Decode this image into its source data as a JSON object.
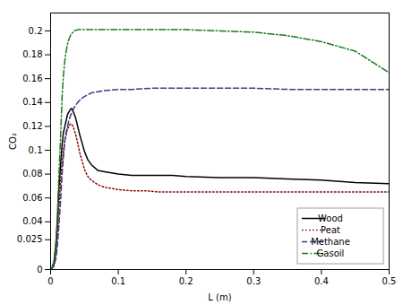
{
  "chart_data": {
    "type": "line",
    "xlabel": "L (m)",
    "ylabel": "CO₂",
    "xlim": [
      0,
      0.5
    ],
    "ylim": [
      0,
      0.215
    ],
    "xticks": [
      0,
      0.1,
      0.2,
      0.3,
      0.4,
      0.5
    ],
    "yticks": [
      0,
      0.025,
      0.04,
      0.06,
      0.08,
      0.1,
      0.12,
      0.14,
      0.16,
      0.18,
      0.2
    ],
    "grid": false,
    "legend": "lower right",
    "series": [
      {
        "name": "Wood",
        "color": "black",
        "line_style": "solid",
        "x": [
          0,
          0.002,
          0.005,
          0.008,
          0.01,
          0.012,
          0.015,
          0.017,
          0.019,
          0.021,
          0.023,
          0.025,
          0.027,
          0.029,
          0.031,
          0.033,
          0.035,
          0.037,
          0.04,
          0.043,
          0.046,
          0.05,
          0.055,
          0.06,
          0.07,
          0.08,
          0.09,
          0.1,
          0.12,
          0.14,
          0.16,
          0.18,
          0.2,
          0.25,
          0.3,
          0.35,
          0.4,
          0.45,
          0.5
        ],
        "values": [
          0,
          0.001,
          0.005,
          0.02,
          0.04,
          0.065,
          0.09,
          0.105,
          0.115,
          0.12,
          0.125,
          0.13,
          0.132,
          0.134,
          0.135,
          0.133,
          0.13,
          0.127,
          0.12,
          0.113,
          0.107,
          0.099,
          0.092,
          0.088,
          0.083,
          0.082,
          0.081,
          0.08,
          0.079,
          0.079,
          0.079,
          0.079,
          0.078,
          0.077,
          0.077,
          0.076,
          0.075,
          0.073,
          0.072
        ]
      },
      {
        "name": "Peat",
        "color": "#8B0000",
        "line_style": "dotted",
        "x": [
          0,
          0.002,
          0.005,
          0.008,
          0.01,
          0.012,
          0.015,
          0.017,
          0.019,
          0.021,
          0.023,
          0.025,
          0.027,
          0.029,
          0.031,
          0.033,
          0.035,
          0.037,
          0.04,
          0.043,
          0.046,
          0.05,
          0.055,
          0.06,
          0.07,
          0.08,
          0.09,
          0.1,
          0.12,
          0.14,
          0.16,
          0.18,
          0.2,
          0.25,
          0.3,
          0.35,
          0.4,
          0.45,
          0.5
        ],
        "values": [
          0,
          0.001,
          0.004,
          0.015,
          0.03,
          0.05,
          0.075,
          0.09,
          0.1,
          0.108,
          0.113,
          0.118,
          0.12,
          0.122,
          0.122,
          0.12,
          0.117,
          0.113,
          0.106,
          0.098,
          0.092,
          0.084,
          0.078,
          0.075,
          0.071,
          0.069,
          0.068,
          0.067,
          0.066,
          0.066,
          0.065,
          0.065,
          0.065,
          0.065,
          0.065,
          0.065,
          0.065,
          0.065,
          0.065
        ]
      },
      {
        "name": "Methane",
        "color": "#3A3A8C",
        "line_style": "dashed",
        "x": [
          0,
          0.002,
          0.005,
          0.008,
          0.01,
          0.012,
          0.015,
          0.017,
          0.019,
          0.021,
          0.023,
          0.025,
          0.027,
          0.03,
          0.035,
          0.04,
          0.045,
          0.05,
          0.06,
          0.07,
          0.08,
          0.1,
          0.12,
          0.15,
          0.2,
          0.25,
          0.3,
          0.35,
          0.4,
          0.45,
          0.5
        ],
        "values": [
          0,
          0.001,
          0.003,
          0.01,
          0.02,
          0.035,
          0.06,
          0.08,
          0.095,
          0.108,
          0.115,
          0.12,
          0.125,
          0.13,
          0.136,
          0.14,
          0.143,
          0.145,
          0.148,
          0.149,
          0.15,
          0.151,
          0.151,
          0.152,
          0.152,
          0.152,
          0.152,
          0.151,
          0.151,
          0.151,
          0.151
        ]
      },
      {
        "name": "Gasoil",
        "color": "#1A7A1A",
        "line_style": "dashdot",
        "x": [
          0,
          0.002,
          0.005,
          0.008,
          0.01,
          0.012,
          0.015,
          0.017,
          0.019,
          0.021,
          0.023,
          0.025,
          0.027,
          0.03,
          0.035,
          0.04,
          0.05,
          0.06,
          0.07,
          0.08,
          0.1,
          0.12,
          0.15,
          0.2,
          0.25,
          0.3,
          0.35,
          0.4,
          0.45,
          0.5
        ],
        "values": [
          0,
          0.002,
          0.008,
          0.025,
          0.045,
          0.075,
          0.115,
          0.145,
          0.163,
          0.175,
          0.183,
          0.189,
          0.193,
          0.197,
          0.2,
          0.201,
          0.201,
          0.201,
          0.201,
          0.201,
          0.201,
          0.201,
          0.201,
          0.201,
          0.2,
          0.199,
          0.196,
          0.191,
          0.183,
          0.165
        ]
      }
    ]
  }
}
